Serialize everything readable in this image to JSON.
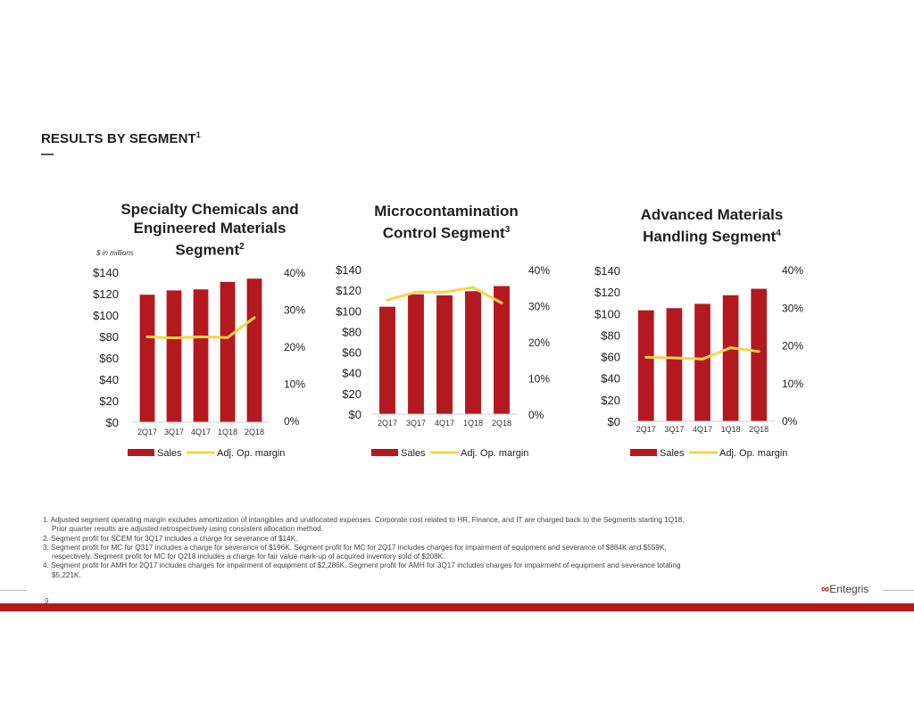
{
  "page": {
    "title": "RESULTS BY SEGMENT",
    "title_sup": "1",
    "units_note": "$ in millions",
    "page_number": "9",
    "logo_text": "Entegris",
    "accent_color": "#b3191f",
    "line_color": "#f5d44a"
  },
  "legend": {
    "sales": "Sales",
    "margin": "Adj. Op. margin"
  },
  "chart_titles": [
    {
      "lines": [
        "Specialty Chemicals and",
        "Engineered Materials"
      ],
      "last": "Segment",
      "sup": "2"
    },
    {
      "lines": [
        "Microcontamination"
      ],
      "last": "Control Segment",
      "sup": "3"
    },
    {
      "lines": [
        "Advanced Materials"
      ],
      "last": "Handling Segment",
      "sup": "4"
    }
  ],
  "chart_data": [
    {
      "type": "bar",
      "categories": [
        "2Q17",
        "3Q17",
        "4Q17",
        "1Q18",
        "2Q18"
      ],
      "series": [
        {
          "name": "Sales",
          "type": "bar",
          "axis": "left",
          "values": [
            119,
            123,
            124,
            131,
            134
          ]
        },
        {
          "name": "Adj. Op. margin",
          "type": "line",
          "axis": "right",
          "values": [
            22.8,
            22.5,
            22.8,
            22.6,
            28.0
          ]
        }
      ],
      "y_left": {
        "min": 0,
        "max": 140,
        "ticks": [
          "$0",
          "$20",
          "$40",
          "$60",
          "$80",
          "$100",
          "$120",
          "$140"
        ]
      },
      "y_right": {
        "min": 0,
        "max": 40,
        "ticks": [
          "0%",
          "10%",
          "20%",
          "30%",
          "40%"
        ]
      }
    },
    {
      "type": "bar",
      "categories": [
        "2Q17",
        "3Q17",
        "4Q17",
        "1Q18",
        "2Q18"
      ],
      "series": [
        {
          "name": "Sales",
          "type": "bar",
          "axis": "left",
          "values": [
            104,
            116,
            115,
            119,
            124
          ]
        },
        {
          "name": "Adj. Op. margin",
          "type": "line",
          "axis": "right",
          "values": [
            31.8,
            34.0,
            34.0,
            35.3,
            31.0
          ]
        }
      ],
      "y_left": {
        "min": 0,
        "max": 140,
        "ticks": [
          "$0",
          "$20",
          "$40",
          "$60",
          "$80",
          "$100",
          "$120",
          "$140"
        ]
      },
      "y_right": {
        "min": 0,
        "max": 40,
        "ticks": [
          "0%",
          "10%",
          "20%",
          "30%",
          "40%"
        ]
      }
    },
    {
      "type": "bar",
      "categories": [
        "2Q17",
        "3Q17",
        "4Q17",
        "1Q18",
        "2Q18"
      ],
      "series": [
        {
          "name": "Sales",
          "type": "bar",
          "axis": "left",
          "values": [
            103,
            105,
            109,
            117,
            123
          ]
        },
        {
          "name": "Adj. Op. margin",
          "type": "line",
          "axis": "right",
          "values": [
            17.0,
            16.8,
            16.5,
            19.5,
            18.5
          ]
        }
      ],
      "y_left": {
        "min": 0,
        "max": 140,
        "ticks": [
          "$0",
          "$20",
          "$40",
          "$60",
          "$80",
          "$100",
          "$120",
          "$140"
        ]
      },
      "y_right": {
        "min": 0,
        "max": 40,
        "ticks": [
          "0%",
          "10%",
          "20%",
          "30%",
          "40%"
        ]
      }
    }
  ],
  "footnotes": [
    {
      "text": "1. Adjusted segment operating margin excludes amortization of intangibles and unallocated expenses. Corporate cost related to HR, Finance, and IT are charged back to the Segments starting 1Q18.",
      "indent": false
    },
    {
      "text": "Prior quarter results are adjusted retrospectively using consistent allocation method.",
      "indent": true
    },
    {
      "text": "2. Segment profit for SCEM for 3Q17 includes a charge for severance of $14K.",
      "indent": false
    },
    {
      "text": "3. Segment profit for MC for Q317 includes a charge for severance of $196K. Segment profit for MC for 2Q17 includes charges for impairment of equipment and severance of $884K and $559K,",
      "indent": false
    },
    {
      "text": "respectively. Segment profit for MC for Q218 includes a charge for fair value mark-up of acquired inventory sold of $208K.",
      "indent": true
    },
    {
      "text": "4. Segment profit for AMH for 2Q17 includes charges for impairment of equipment of $2,286K. Segment profit for AMH for 3Q17 includes charges for impairment of equipment and severance totaling",
      "indent": false
    },
    {
      "text": "$5,221K.",
      "indent": true
    }
  ]
}
